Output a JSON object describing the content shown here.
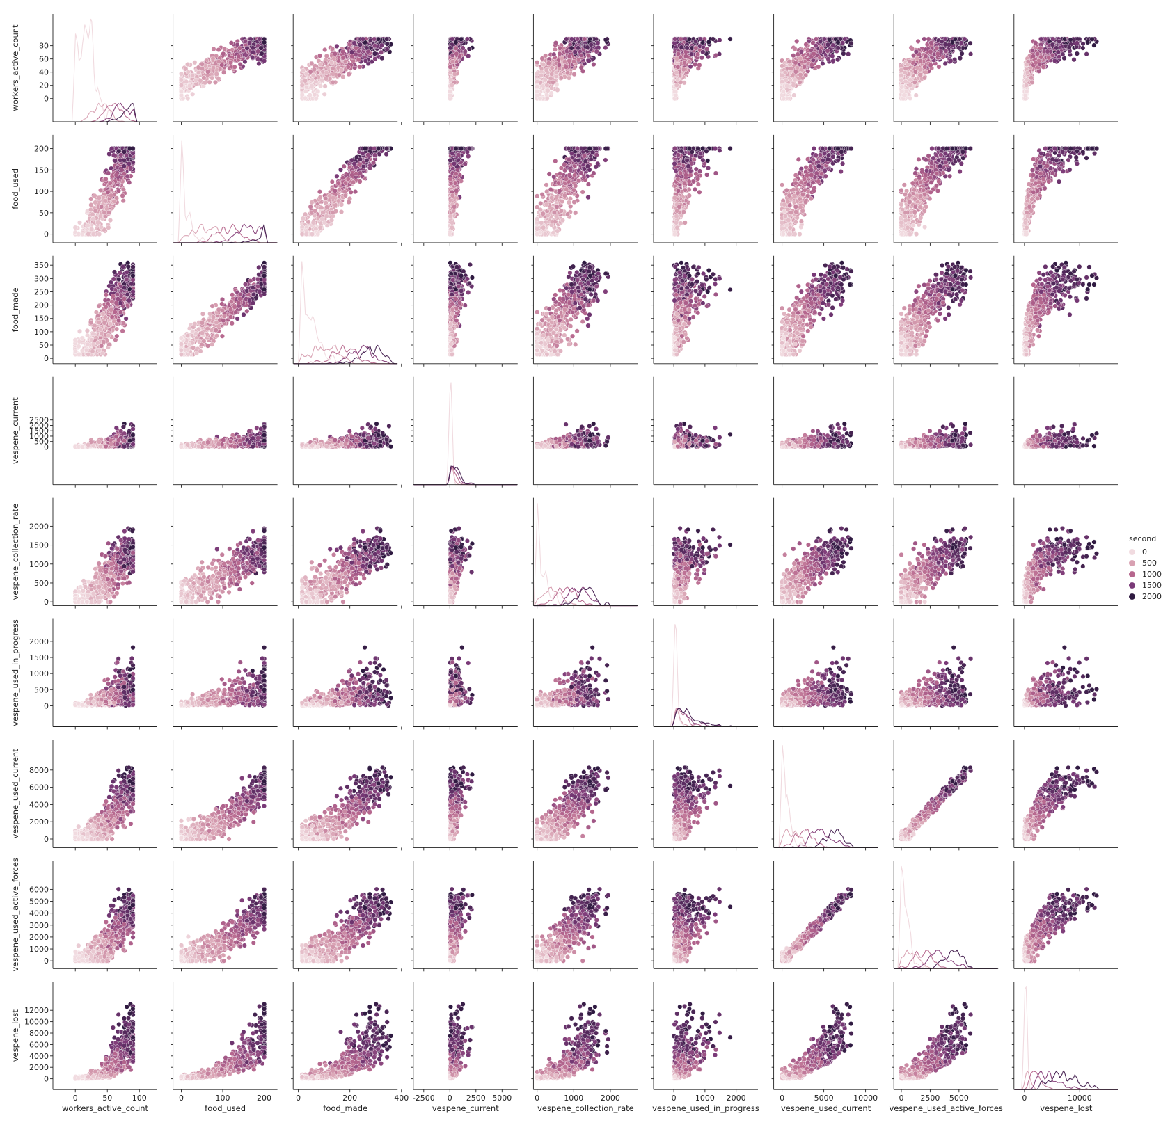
{
  "chart_data": {
    "type": "scatter",
    "kind": "pairplot",
    "hue": "second",
    "variables": [
      {
        "name": "workers_active_count",
        "lim": [
          -35,
          128
        ],
        "ticks": [
          0,
          20,
          40,
          60,
          80
        ],
        "xticks": [
          0,
          50,
          100
        ]
      },
      {
        "name": "food_used",
        "lim": [
          -20,
          232
        ],
        "ticks": [
          0,
          50,
          100,
          150,
          200
        ],
        "xticks": [
          0,
          100,
          200
        ]
      },
      {
        "name": "food_made",
        "lim": [
          -20,
          385
        ],
        "ticks": [
          0,
          50,
          100,
          150,
          200,
          250,
          300,
          350
        ],
        "xticks": [
          0,
          200,
          400
        ]
      },
      {
        "name": "vespene_current",
        "lim": [
          -3500,
          6500
        ],
        "ticks": [
          0,
          500,
          1000,
          1500,
          2000,
          2500
        ],
        "xticks": [
          -2500,
          0,
          2500,
          5000
        ]
      },
      {
        "name": "vespene_collection_rate",
        "lim": [
          -100,
          2750
        ],
        "ticks": [
          0,
          500,
          1000,
          1500,
          2000
        ],
        "xticks": [
          0,
          1000,
          2000
        ]
      },
      {
        "name": "vespene_used_in_progress",
        "lim": [
          -650,
          2700
        ],
        "ticks": [
          0,
          500,
          1000,
          1500,
          2000
        ],
        "xticks": [
          0,
          1000,
          2000
        ]
      },
      {
        "name": "vespene_used_current",
        "lim": [
          -1000,
          11500
        ],
        "ticks": [
          0,
          2000,
          4000,
          6000,
          8000
        ],
        "xticks": [
          0,
          5000,
          10000
        ]
      },
      {
        "name": "vespene_used_active_forces",
        "lim": [
          -650,
          8400
        ],
        "ticks": [
          0,
          1000,
          2000,
          3000,
          4000,
          5000,
          6000
        ],
        "xticks": [
          0,
          2500,
          5000
        ]
      },
      {
        "name": "vespene_lost",
        "lim": [
          -1900,
          17000
        ],
        "ticks": [
          0,
          2000,
          4000,
          6000,
          8000,
          10000,
          12000
        ],
        "xticks": [
          0,
          10000
        ]
      }
    ],
    "legend": {
      "title": "second",
      "entries": [
        {
          "label": "0",
          "color": "#f1dbe0"
        },
        {
          "label": "500",
          "color": "#d8a1b2"
        },
        {
          "label": "1000",
          "color": "#b6678e"
        },
        {
          "label": "1500",
          "color": "#7a3a78"
        },
        {
          "label": "2000",
          "color": "#2f1a41"
        }
      ],
      "position": "right"
    },
    "hue_range": [
      0,
      2200
    ],
    "colors": {
      "light": "#f2dde2",
      "dark": "#2b1a3f"
    }
  }
}
